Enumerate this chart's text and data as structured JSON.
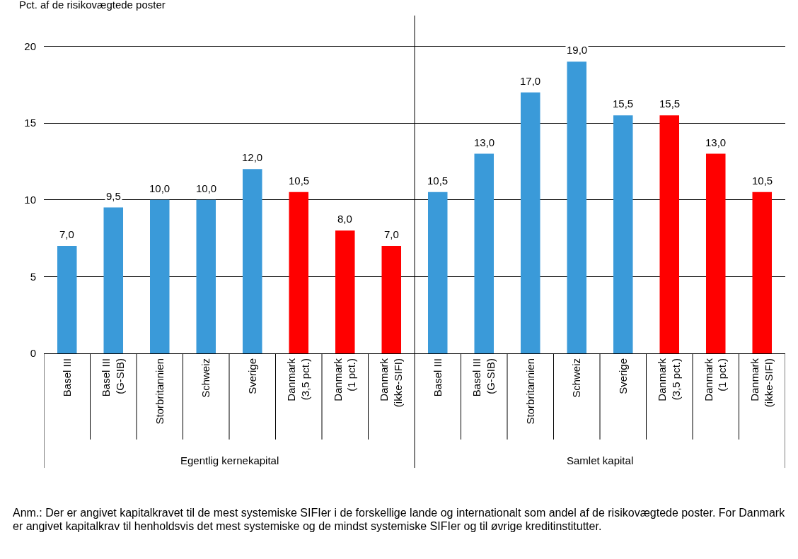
{
  "chart_data": {
    "type": "bar",
    "ylabel": "Pct. af de risikovægtede poster",
    "categories": [
      "Basel III",
      "Basel III\n(G-SIB)",
      "Storbritannien",
      "Schweiz",
      "Sverige",
      "Danmark\n(3,5 pct.)",
      "Danmark\n(1 pct.)",
      "Danmark\n(ikke-SIFI)",
      "Basel III",
      "Basel III\n(G-SIB)",
      "Storbritannien",
      "Schweiz",
      "Sverige",
      "Danmark\n(3,5 pct.)",
      "Danmark\n(1 pct.)",
      "Danmark\n(ikke-SIFI)"
    ],
    "values": [
      7.0,
      9.5,
      10.0,
      10.0,
      12.0,
      10.5,
      8.0,
      7.0,
      10.5,
      13.0,
      17.0,
      19.0,
      15.5,
      15.5,
      13.0,
      10.5
    ],
    "value_labels": [
      "7,0",
      "9,5",
      "10,0",
      "10,0",
      "12,0",
      "10,5",
      "8,0",
      "7,0",
      "10,5",
      "13,0",
      "17,0",
      "19,0",
      "15,5",
      "15,5",
      "13,0",
      "10,5"
    ],
    "colors": [
      "#3a9ad9",
      "#3a9ad9",
      "#3a9ad9",
      "#3a9ad9",
      "#3a9ad9",
      "#ff0000",
      "#ff0000",
      "#ff0000",
      "#3a9ad9",
      "#3a9ad9",
      "#3a9ad9",
      "#3a9ad9",
      "#3a9ad9",
      "#ff0000",
      "#ff0000",
      "#ff0000"
    ],
    "ylim": [
      0,
      22
    ],
    "yticks": [
      0,
      5,
      10,
      15,
      20
    ],
    "grid": "y",
    "legend": false,
    "annotations": [
      "Egentlig kernekapital",
      "Samlet kapital",
      "Anm.: Der er angivet kapitalkravet til de mest systemiske SIFIer i de forskellige lande og internationalt som andel af de risikovægtede poster. For Danmark er angivet kapitalkrav til henholdsvis det mest systemiske og de mindst systemiske SIFIer og til øvrige kreditinstitutter."
    ]
  }
}
